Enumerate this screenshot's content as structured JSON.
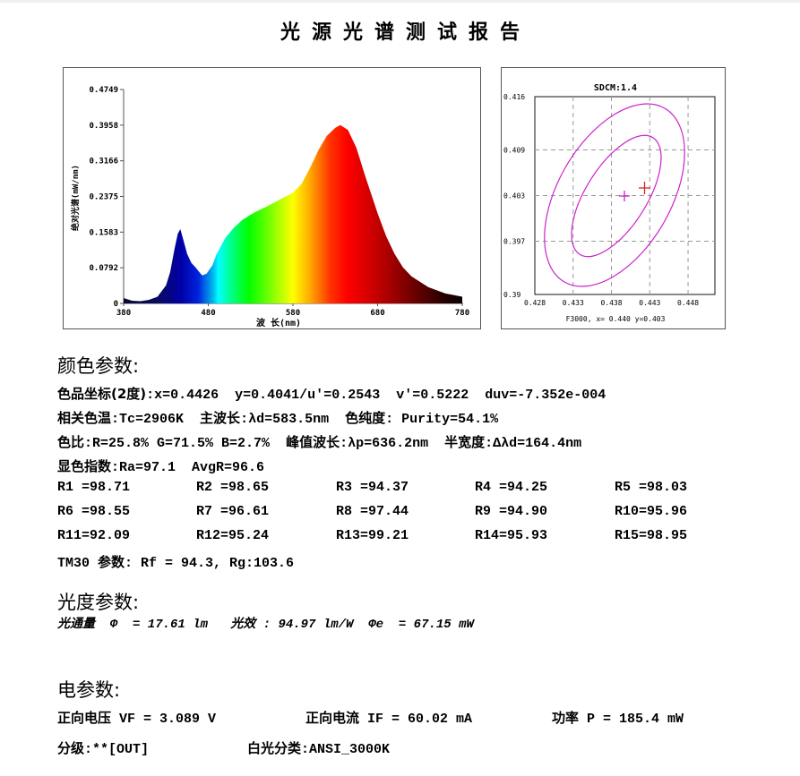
{
  "report": {
    "title": "光源光谱测试报告"
  },
  "chart_data": [
    {
      "type": "area",
      "title": "",
      "xlabel": "波 长(nm)",
      "ylabel": "绝对光谱(mW/nm)",
      "xlim": [
        380,
        780
      ],
      "ylim": [
        0,
        0.4749
      ],
      "xticks": [
        "380",
        "480",
        "580",
        "680",
        "780"
      ],
      "yticks": [
        "0",
        "0.0792",
        "0.1583",
        "0.2375",
        "0.3166",
        "0.3958",
        "0.4749"
      ],
      "grid": false,
      "fill": "visible-spectrum gradient",
      "x": [
        380,
        390,
        400,
        410,
        420,
        430,
        435,
        440,
        444,
        447,
        450,
        455,
        460,
        465,
        470,
        473,
        478,
        485,
        490,
        500,
        510,
        520,
        530,
        540,
        550,
        560,
        570,
        580,
        590,
        600,
        610,
        620,
        630,
        636,
        645,
        655,
        665,
        680,
        690,
        700,
        710,
        720,
        740,
        760,
        780
      ],
      "values": [
        0.012,
        0.006,
        0.005,
        0.008,
        0.015,
        0.04,
        0.07,
        0.12,
        0.155,
        0.165,
        0.145,
        0.11,
        0.09,
        0.08,
        0.068,
        0.062,
        0.066,
        0.085,
        0.11,
        0.145,
        0.168,
        0.185,
        0.197,
        0.207,
        0.216,
        0.226,
        0.236,
        0.246,
        0.265,
        0.3,
        0.34,
        0.372,
        0.39,
        0.396,
        0.385,
        0.345,
        0.285,
        0.2,
        0.15,
        0.11,
        0.08,
        0.06,
        0.036,
        0.022,
        0.015
      ]
    },
    {
      "type": "scatter",
      "title": "SDCM:1.4",
      "xlabel": "F3000, x= 0.440 y=0.403",
      "ylabel": "",
      "xlim": [
        0.428,
        0.4515
      ],
      "ylim": [
        0.39,
        0.416
      ],
      "xticks": [
        "0.428",
        "0.433",
        "0.438",
        "0.443",
        "0.448"
      ],
      "yticks": [
        "0.39",
        "0.397",
        "0.403",
        "0.409",
        "0.416"
      ],
      "grid": true,
      "ellipses": [
        {
          "label": "inner SDCM ellipse",
          "color": "#cc22cc"
        },
        {
          "label": "outer SDCM ellipse",
          "color": "#cc22cc"
        }
      ],
      "points": [
        {
          "label": "F3000 center",
          "x": 0.44,
          "y": 0.403,
          "color": "#cc22cc"
        },
        {
          "label": "measured",
          "x": 0.4426,
          "y": 0.4041,
          "color": "#dd2222"
        }
      ]
    }
  ],
  "spectrum": {
    "ylabel": "绝对光谱(mW/nm)",
    "xlabel": "波 长(nm)",
    "yticks": [
      "0.4749",
      "0.3958",
      "0.3166",
      "0.2375",
      "0.1583",
      "0.0792",
      "0"
    ],
    "xticks": [
      "380",
      "480",
      "580",
      "680",
      "780"
    ]
  },
  "cie": {
    "title": "SDCM:1.4",
    "caption": "F3000, x= 0.440 y=0.403",
    "yticks": [
      "0.416",
      "0.409",
      "0.403",
      "0.397",
      "0.39"
    ],
    "xticks": [
      "0.428",
      "0.433",
      "0.438",
      "0.443",
      "0.448"
    ]
  },
  "color_params": {
    "heading": "颜色参数:",
    "chroma_label": "色品坐标(2度)",
    "chroma_value": ":x=0.4426  y=0.4041/u'=0.2543  v'=0.5222  duv=-7.352e-004",
    "cct_label": "相关色温",
    "cct_value": ":Tc=2906K  ",
    "dominant_label": "主波长",
    "dominant_value": ":λd=583.5nm  ",
    "purity_label": "色纯度",
    "purity_value": ": Purity=54.1%",
    "ratio_label": "色比",
    "ratio_value": ":R=25.8% G=71.5% B=2.7%  ",
    "peak_label": "峰值波长",
    "peak_value": ":λp=636.2nm  ",
    "fwhm_label": "半宽度",
    "fwhm_value": ":Δλd=164.4nm",
    "cri_label": "显色指数",
    "cri_value": ":Ra=97.1  AvgR=96.6",
    "r_values": [
      [
        "R1 =98.71",
        "R2 =98.65",
        "R3 =94.37",
        "R4 =94.25",
        "R5 =98.03"
      ],
      [
        "R6 =98.55",
        "R7 =96.61",
        "R8 =97.44",
        "R9 =94.90",
        "R10=95.96"
      ],
      [
        "R11=92.09",
        "R12=95.24",
        "R13=99.21",
        "R14=95.93",
        "R15=98.95"
      ]
    ],
    "tm30_label_a": "TM30 ",
    "tm30_label_b": "参数",
    "tm30_value": ": Rf = 94.3, Rg:103.6"
  },
  "photometric": {
    "heading": "光度参数:",
    "flux_label": "光通量",
    "flux_value": "  Φ  = 17.61 lm   ",
    "efficacy_label": "光效",
    "efficacy_value": " : 94.97 lm/W  Φe  = 67.15 mW"
  },
  "electrical": {
    "heading": "电参数:",
    "vf_label": "正向电压",
    "vf_value": " VF = 3.089 V",
    "if_label": "正向电流",
    "if_value": " IF = 60.02 mA",
    "p_label": "功率",
    "p_value": " P = 185.4 mW",
    "grade_label": "分级",
    "grade_value": ":**[OUT]",
    "white_label": "白光分类",
    "white_value": ":ANSI_3000K"
  }
}
